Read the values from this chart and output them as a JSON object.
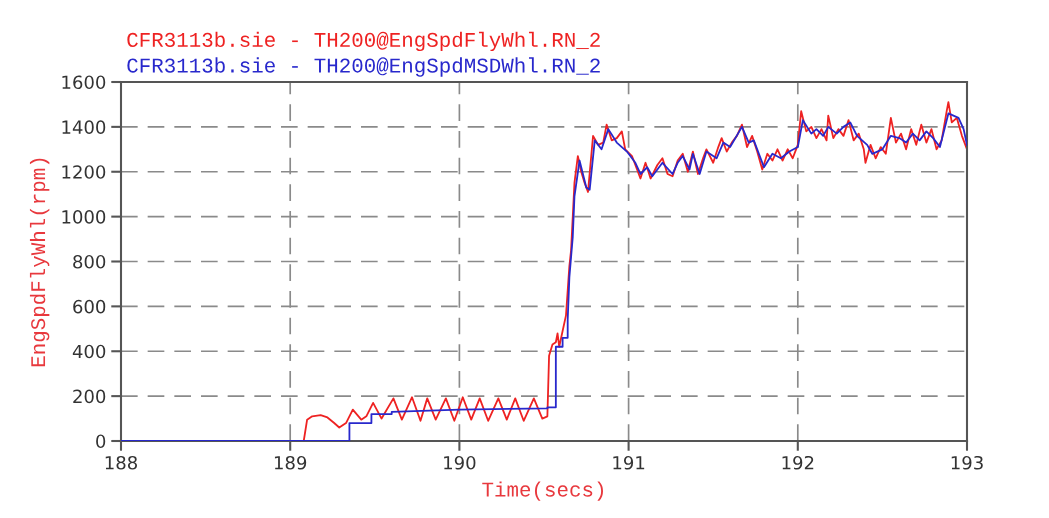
{
  "chart_data": {
    "type": "line",
    "xlabel": "Time(secs)",
    "ylabel": "EngSpdFlyWhl(rpm)",
    "xlim": [
      188,
      193
    ],
    "xticks": [
      188,
      189,
      190,
      191,
      192,
      193
    ],
    "ylim": [
      0,
      1600
    ],
    "yticks": [
      0,
      200,
      400,
      600,
      800,
      1000,
      1200,
      1400,
      1600
    ],
    "grid": true,
    "legend": "top left",
    "marker": "none",
    "line_style": "solid",
    "series": [
      {
        "name": "CFR3113b.sie - TH200@EngSpdFlyWhl.RN_2",
        "color": "#ee2222",
        "x": [
          188.0,
          189.08,
          189.1,
          189.13,
          189.18,
          189.22,
          189.26,
          189.29,
          189.33,
          189.37,
          189.42,
          189.45,
          189.49,
          189.54,
          189.61,
          189.66,
          189.72,
          189.77,
          189.81,
          189.86,
          189.92,
          189.97,
          190.02,
          190.07,
          190.12,
          190.17,
          190.23,
          190.28,
          190.33,
          190.38,
          190.44,
          190.49,
          190.52,
          190.53,
          190.55,
          190.57,
          190.58,
          190.59,
          190.61,
          190.63,
          190.65,
          190.66,
          190.68,
          190.7,
          190.72,
          190.74,
          190.76,
          190.79,
          190.82,
          190.85,
          190.87,
          190.9,
          190.93,
          190.96,
          190.98,
          191.02,
          191.05,
          191.07,
          191.1,
          191.13,
          191.17,
          191.2,
          191.23,
          191.26,
          191.29,
          191.32,
          191.35,
          191.38,
          191.41,
          191.44,
          191.46,
          191.5,
          191.53,
          191.55,
          191.58,
          191.61,
          191.64,
          191.67,
          191.7,
          191.73,
          191.76,
          191.79,
          191.82,
          191.85,
          191.88,
          191.91,
          191.94,
          191.97,
          192.0,
          192.02,
          192.05,
          192.08,
          192.11,
          192.14,
          192.17,
          192.18,
          192.21,
          192.24,
          192.27,
          192.3,
          192.33,
          192.36,
          192.39,
          192.4,
          192.43,
          192.46,
          192.49,
          192.52,
          192.55,
          192.58,
          192.61,
          192.64,
          192.67,
          192.7,
          192.73,
          192.76,
          192.79,
          192.82,
          192.85,
          192.88,
          192.89,
          192.91,
          192.94,
          192.97,
          193.0
        ],
        "values": [
          0,
          0,
          95,
          110,
          115,
          105,
          80,
          60,
          80,
          140,
          95,
          110,
          170,
          100,
          190,
          95,
          195,
          90,
          190,
          95,
          190,
          90,
          195,
          95,
          190,
          90,
          190,
          95,
          190,
          90,
          190,
          100,
          110,
          380,
          430,
          440,
          480,
          420,
          490,
          560,
          780,
          850,
          1150,
          1270,
          1200,
          1150,
          1110,
          1360,
          1320,
          1330,
          1410,
          1340,
          1350,
          1380,
          1300,
          1270,
          1210,
          1170,
          1240,
          1170,
          1230,
          1260,
          1190,
          1180,
          1250,
          1280,
          1200,
          1290,
          1190,
          1260,
          1300,
          1240,
          1310,
          1350,
          1290,
          1330,
          1360,
          1410,
          1310,
          1360,
          1290,
          1210,
          1280,
          1250,
          1300,
          1250,
          1300,
          1260,
          1320,
          1470,
          1380,
          1400,
          1350,
          1390,
          1340,
          1450,
          1350,
          1390,
          1360,
          1430,
          1340,
          1370,
          1300,
          1240,
          1320,
          1260,
          1310,
          1280,
          1440,
          1330,
          1370,
          1300,
          1390,
          1320,
          1410,
          1330,
          1390,
          1300,
          1340,
          1470,
          1510,
          1420,
          1440,
          1360,
          1300
        ]
      },
      {
        "name": "CFR3113b.sie - TH200@EngSpdMSDWhl.RN_2",
        "color": "#2828cc",
        "x": [
          188.0,
          189.35,
          189.35,
          189.48,
          189.48,
          189.6,
          189.6,
          190.0,
          190.52,
          190.52,
          190.57,
          190.57,
          190.61,
          190.61,
          190.64,
          190.64,
          190.65,
          190.67,
          190.68,
          190.71,
          190.75,
          190.77,
          190.8,
          190.84,
          190.88,
          190.93,
          190.99,
          191.04,
          191.07,
          191.11,
          191.14,
          191.2,
          191.26,
          191.29,
          191.32,
          191.36,
          191.38,
          191.42,
          191.46,
          191.52,
          191.56,
          191.6,
          191.67,
          191.71,
          191.74,
          191.8,
          191.85,
          191.9,
          191.95,
          192.0,
          192.03,
          192.08,
          192.11,
          192.15,
          192.18,
          192.23,
          192.27,
          192.31,
          192.35,
          192.41,
          192.44,
          192.5,
          192.55,
          192.6,
          192.64,
          192.68,
          192.72,
          192.76,
          192.8,
          192.84,
          192.89,
          192.95,
          192.98,
          193.0
        ],
        "values": [
          0,
          0,
          80,
          80,
          120,
          120,
          130,
          140,
          145,
          150,
          150,
          420,
          420,
          460,
          460,
          540,
          730,
          910,
          1090,
          1250,
          1130,
          1120,
          1340,
          1300,
          1390,
          1330,
          1290,
          1240,
          1190,
          1220,
          1180,
          1240,
          1190,
          1240,
          1270,
          1210,
          1280,
          1190,
          1290,
          1260,
          1330,
          1310,
          1400,
          1330,
          1340,
          1220,
          1280,
          1260,
          1290,
          1310,
          1430,
          1370,
          1390,
          1360,
          1400,
          1370,
          1400,
          1420,
          1360,
          1320,
          1280,
          1300,
          1360,
          1350,
          1330,
          1370,
          1340,
          1380,
          1350,
          1310,
          1460,
          1440,
          1390,
          1320
        ]
      }
    ]
  }
}
